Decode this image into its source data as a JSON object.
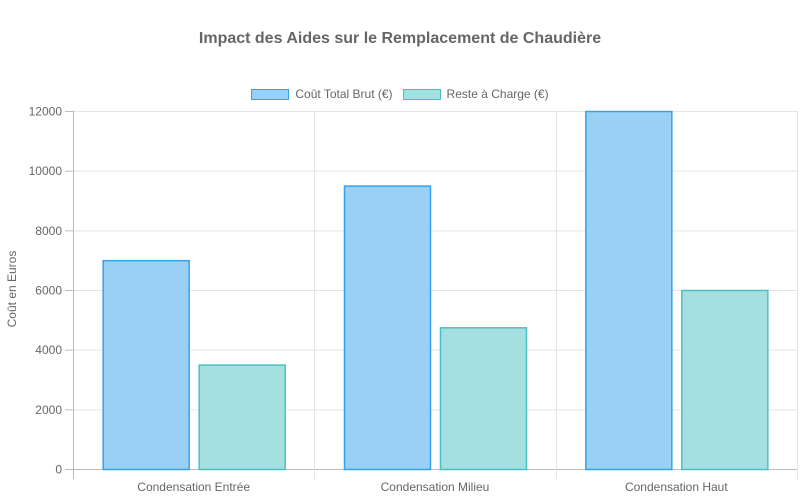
{
  "chart_data": {
    "type": "bar",
    "title": "Impact des Aides sur le Remplacement de Chaudière",
    "xlabel": "",
    "ylabel": "Coût en Euros",
    "ylim": [
      0,
      12000
    ],
    "yticks": [
      0,
      2000,
      4000,
      6000,
      8000,
      10000,
      12000
    ],
    "grid": true,
    "legend_position": "top",
    "categories": [
      "Condensation Entrée",
      "Condensation Milieu",
      "Condensation Haut"
    ],
    "series": [
      {
        "name": "Coût Total Brut (€)",
        "values": [
          7000,
          9500,
          12000
        ],
        "fill": "#9ad0f5",
        "border": "#36a2eb"
      },
      {
        "name": "Reste à Charge (€)",
        "values": [
          3500,
          4750,
          6000
        ],
        "fill": "#a5dfdf",
        "border": "#4bc0c0"
      }
    ]
  }
}
